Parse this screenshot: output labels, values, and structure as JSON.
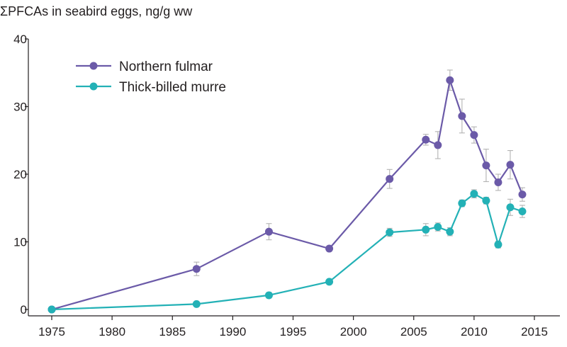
{
  "chart_data": {
    "type": "line",
    "title": "",
    "ylabel": "ΣPFCAs in seabird eggs, ng/g ww",
    "xlabel": "",
    "xlim": [
      1975,
      2015
    ],
    "ylim": [
      0,
      40
    ],
    "x_ticks": [
      1975,
      1980,
      1985,
      1990,
      1995,
      2000,
      2005,
      2010,
      2015
    ],
    "y_ticks": [
      0,
      10,
      20,
      30,
      40
    ],
    "grid": false,
    "legend": "top-left",
    "series": [
      {
        "name": "Northern fulmar",
        "color": "#6b5aa8",
        "x": [
          1975,
          1987,
          1993,
          1998,
          2003,
          2006,
          2007,
          2008,
          2009,
          2010,
          2011,
          2012,
          2013,
          2014
        ],
        "y": [
          0,
          6,
          11.5,
          9,
          19.3,
          25.1,
          24.3,
          33.9,
          28.6,
          25.8,
          21.3,
          18.8,
          21.4,
          17
        ],
        "err": [
          0,
          1,
          1.2,
          0,
          1.4,
          0.8,
          2,
          1.5,
          2.5,
          1.2,
          2.4,
          1.2,
          2.1,
          1
        ]
      },
      {
        "name": "Thick-billed murre",
        "color": "#23b1b6",
        "x": [
          1975,
          1987,
          1993,
          1998,
          2003,
          2006,
          2007,
          2008,
          2009,
          2010,
          2011,
          2012,
          2013,
          2014
        ],
        "y": [
          0,
          0.8,
          2.1,
          4.1,
          11.4,
          11.8,
          12.2,
          11.5,
          15.7,
          17.1,
          16.1,
          9.6,
          15.1,
          14.5
        ],
        "err": [
          0,
          0,
          0.4,
          0,
          0.6,
          0.9,
          0.6,
          0.6,
          0.5,
          0.6,
          0.5,
          0.5,
          1.2,
          0.9
        ]
      }
    ]
  }
}
